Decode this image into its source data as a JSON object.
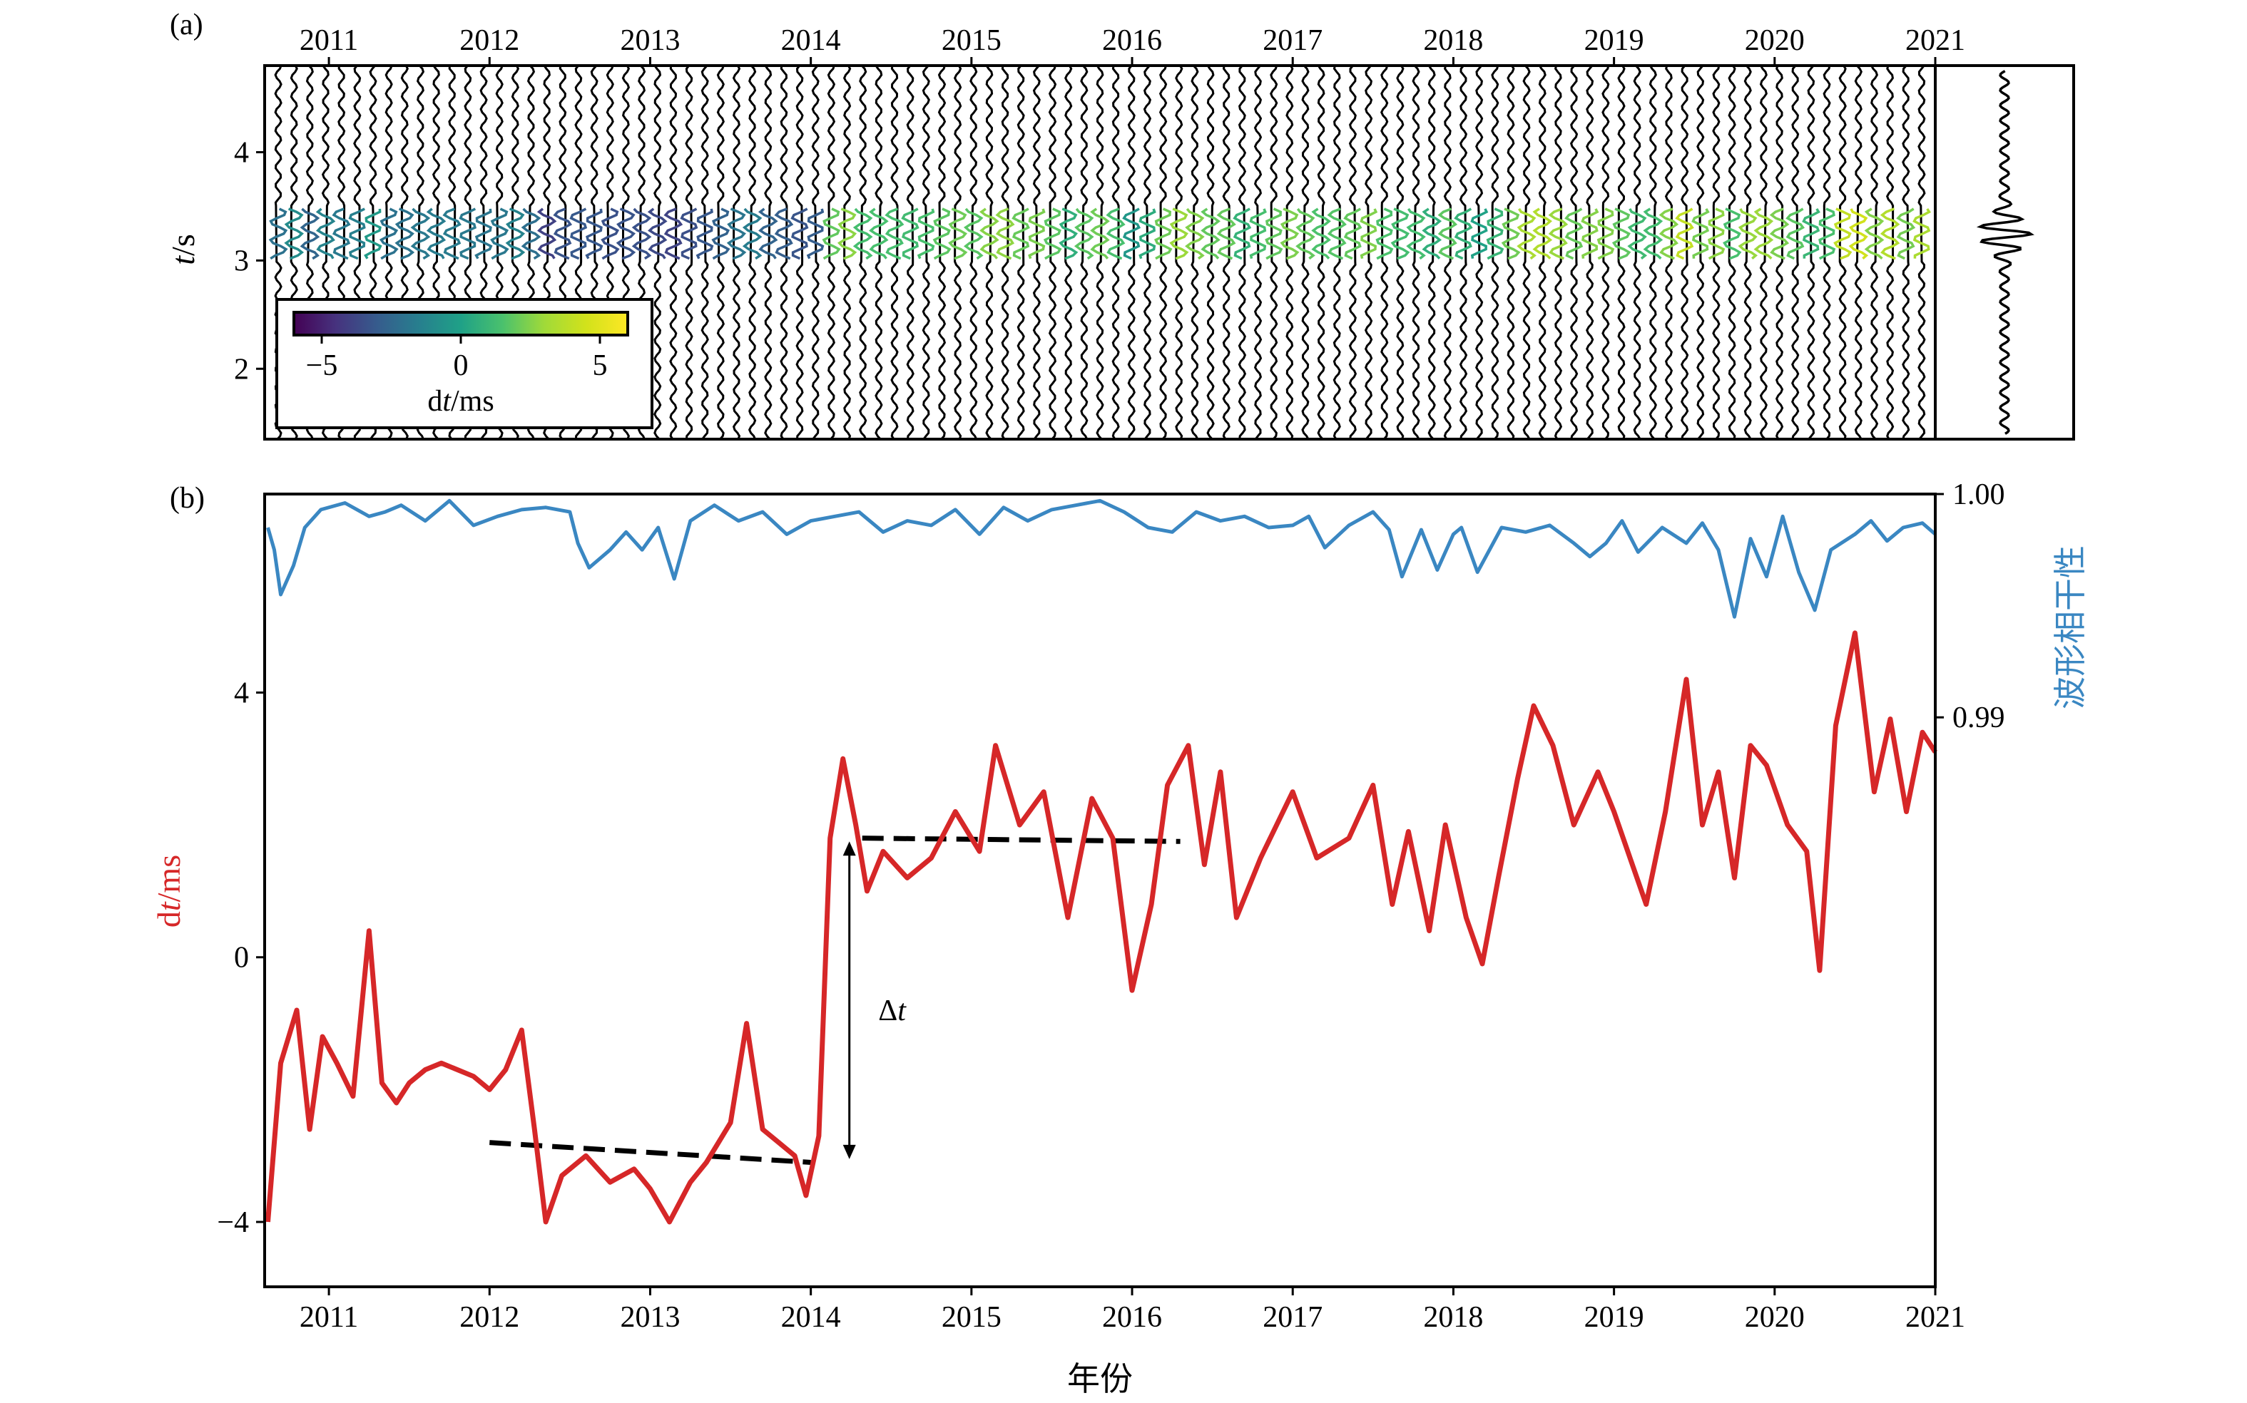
{
  "colors": {
    "dt_line": "#d62728",
    "coherence_line": "#3a87c2",
    "axis": "#000000",
    "trend_line": "#000000"
  },
  "colormap": "viridis",
  "chart_data": [
    {
      "panel_label": "(a)",
      "type": "heatmap",
      "description_kind": "seismogram-trace-stack",
      "x_tick_labels": [
        "2011",
        "2012",
        "2013",
        "2014",
        "2015",
        "2016",
        "2017",
        "2018",
        "2019",
        "2020",
        "2021"
      ],
      "xlim": [
        2010.6,
        2021.0
      ],
      "xaxis_position": "top",
      "ylabel_italic": "t",
      "ylabel_rest": "/s",
      "y_ticks": [
        2,
        3,
        4
      ],
      "y_tick_labels": [
        "2",
        "3",
        "4"
      ],
      "ylim": [
        1.35,
        4.8
      ],
      "trace_count": 105,
      "highlight_window_s": [
        3.0,
        3.5
      ],
      "colorbar": {
        "range": [
          -6,
          6
        ],
        "ticks": [
          -5,
          0,
          5
        ],
        "tick_labels": [
          "−5",
          "0",
          "5"
        ],
        "label_italic": "t",
        "label_prefix": "d",
        "label_suffix": "/ms",
        "placement": "lower-left"
      },
      "reference_trace": {
        "placement": "right"
      }
    },
    {
      "panel_label": "(b)",
      "type": "line",
      "x_tick_labels": [
        "2011",
        "2012",
        "2013",
        "2014",
        "2015",
        "2016",
        "2017",
        "2018",
        "2019",
        "2020",
        "2021"
      ],
      "xlim": [
        2010.6,
        2021.0
      ],
      "xlabel": "年份",
      "y_left": {
        "label_prefix": "d",
        "label_italic": "t",
        "label_suffix": "/ms",
        "ticks": [
          -4,
          0,
          4
        ],
        "tick_labels": [
          "−4",
          "0",
          "4"
        ],
        "ylim": [
          -4.98,
          7.0
        ]
      },
      "y_right": {
        "label": "波形相干性",
        "ticks": [
          0.99,
          1.0
        ],
        "tick_labels": [
          "0.99",
          "1.00"
        ],
        "ylim": [
          0.9645,
          1.0
        ]
      },
      "series": [
        {
          "axis": "left",
          "color": "#d62728",
          "x": [
            2010.62,
            2010.7,
            2010.8,
            2010.88,
            2010.96,
            2011.05,
            2011.15,
            2011.25,
            2011.33,
            2011.42,
            2011.5,
            2011.6,
            2011.7,
            2011.8,
            2011.9,
            2012.0,
            2012.1,
            2012.2,
            2012.28,
            2012.35,
            2012.45,
            2012.6,
            2012.75,
            2012.9,
            2013.0,
            2013.12,
            2013.25,
            2013.35,
            2013.5,
            2013.6,
            2013.7,
            2013.8,
            2013.9,
            2013.97,
            2014.05,
            2014.12,
            2014.2,
            2014.28,
            2014.35,
            2014.45,
            2014.6,
            2014.75,
            2014.9,
            2015.05,
            2015.15,
            2015.3,
            2015.45,
            2015.6,
            2015.75,
            2015.88,
            2016.0,
            2016.12,
            2016.22,
            2016.35,
            2016.45,
            2016.55,
            2016.65,
            2016.8,
            2017.0,
            2017.15,
            2017.35,
            2017.5,
            2017.62,
            2017.72,
            2017.85,
            2017.95,
            2018.08,
            2018.18,
            2018.28,
            2018.4,
            2018.5,
            2018.62,
            2018.75,
            2018.9,
            2019.0,
            2019.1,
            2019.2,
            2019.32,
            2019.45,
            2019.55,
            2019.65,
            2019.75,
            2019.85,
            2019.95,
            2020.08,
            2020.2,
            2020.28,
            2020.38,
            2020.5,
            2020.62,
            2020.72,
            2020.82,
            2020.92,
            2021.0
          ],
          "y": [
            -4.0,
            -1.6,
            -0.8,
            -2.6,
            -1.2,
            -1.6,
            -2.1,
            0.4,
            -1.9,
            -2.2,
            -1.9,
            -1.7,
            -1.6,
            -1.7,
            -1.8,
            -2.0,
            -1.7,
            -1.1,
            -2.6,
            -4.0,
            -3.3,
            -3.0,
            -3.4,
            -3.2,
            -3.5,
            -4.0,
            -3.4,
            -3.1,
            -2.5,
            -1.0,
            -2.6,
            -2.8,
            -3.0,
            -3.6,
            -2.7,
            1.8,
            3.0,
            2.0,
            1.0,
            1.6,
            1.2,
            1.5,
            2.2,
            1.6,
            3.2,
            2.0,
            2.5,
            0.6,
            2.4,
            1.8,
            -0.5,
            0.8,
            2.6,
            3.2,
            1.4,
            2.8,
            0.6,
            1.5,
            2.5,
            1.5,
            1.8,
            2.6,
            0.8,
            1.9,
            0.4,
            2.0,
            0.6,
            -0.1,
            1.2,
            2.7,
            3.8,
            3.2,
            2.0,
            2.8,
            2.2,
            1.5,
            0.8,
            2.2,
            4.2,
            2.0,
            2.8,
            1.2,
            3.2,
            2.9,
            2.0,
            1.6,
            -0.2,
            3.5,
            4.9,
            2.5,
            3.6,
            2.2,
            3.4,
            3.1
          ]
        },
        {
          "axis": "right",
          "color": "#3a87c2",
          "x": [
            2010.62,
            2010.66,
            2010.7,
            2010.78,
            2010.85,
            2010.95,
            2011.1,
            2011.25,
            2011.35,
            2011.45,
            2011.6,
            2011.75,
            2011.9,
            2012.05,
            2012.2,
            2012.35,
            2012.5,
            2012.55,
            2012.62,
            2012.75,
            2012.85,
            2012.95,
            2013.05,
            2013.15,
            2013.25,
            2013.4,
            2013.55,
            2013.7,
            2013.85,
            2014.0,
            2014.15,
            2014.3,
            2014.45,
            2014.6,
            2014.75,
            2014.9,
            2015.05,
            2015.2,
            2015.35,
            2015.5,
            2015.65,
            2015.8,
            2015.95,
            2016.1,
            2016.25,
            2016.4,
            2016.55,
            2016.7,
            2016.85,
            2017.0,
            2017.1,
            2017.2,
            2017.35,
            2017.5,
            2017.6,
            2017.68,
            2017.8,
            2017.9,
            2018.0,
            2018.05,
            2018.15,
            2018.3,
            2018.45,
            2018.6,
            2018.75,
            2018.85,
            2018.95,
            2019.05,
            2019.15,
            2019.3,
            2019.45,
            2019.55,
            2019.65,
            2019.75,
            2019.85,
            2019.95,
            2020.05,
            2020.15,
            2020.25,
            2020.35,
            2020.5,
            2020.6,
            2020.7,
            2020.8,
            2020.92,
            2021.0
          ],
          "y": [
            0.9985,
            0.9975,
            0.9955,
            0.9968,
            0.9985,
            0.9993,
            0.9996,
            0.999,
            0.9992,
            0.9995,
            0.9988,
            0.9997,
            0.9986,
            0.999,
            0.9993,
            0.9994,
            0.9992,
            0.9978,
            0.9967,
            0.9975,
            0.9983,
            0.9975,
            0.9985,
            0.9962,
            0.9988,
            0.9995,
            0.9988,
            0.9992,
            0.9982,
            0.9988,
            0.999,
            0.9992,
            0.9983,
            0.9988,
            0.9986,
            0.9993,
            0.9982,
            0.9994,
            0.9988,
            0.9993,
            0.9995,
            0.9997,
            0.9992,
            0.9985,
            0.9983,
            0.9992,
            0.9988,
            0.999,
            0.9985,
            0.9986,
            0.999,
            0.9976,
            0.9986,
            0.9992,
            0.9984,
            0.9963,
            0.9984,
            0.9966,
            0.9982,
            0.9985,
            0.9965,
            0.9985,
            0.9983,
            0.9986,
            0.9978,
            0.9972,
            0.9978,
            0.9988,
            0.9974,
            0.9985,
            0.9978,
            0.9987,
            0.9975,
            0.9945,
            0.998,
            0.9963,
            0.999,
            0.9965,
            0.9948,
            0.9975,
            0.9982,
            0.9988,
            0.9979,
            0.9985,
            0.9987,
            0.9982
          ]
        }
      ],
      "trend_lines": [
        {
          "x": [
            2012.0,
            2014.0
          ],
          "y": [
            -2.8,
            -3.1
          ]
        },
        {
          "x": [
            2014.32,
            2016.3
          ],
          "y": [
            1.8,
            1.75
          ]
        }
      ],
      "annotation": {
        "text_prefix": "Δ",
        "text_italic": "t",
        "arrow_x": 2014.24,
        "arrow_y": [
          1.75,
          -3.05
        ],
        "label_x": 2014.42,
        "label_y": -0.95
      }
    }
  ]
}
